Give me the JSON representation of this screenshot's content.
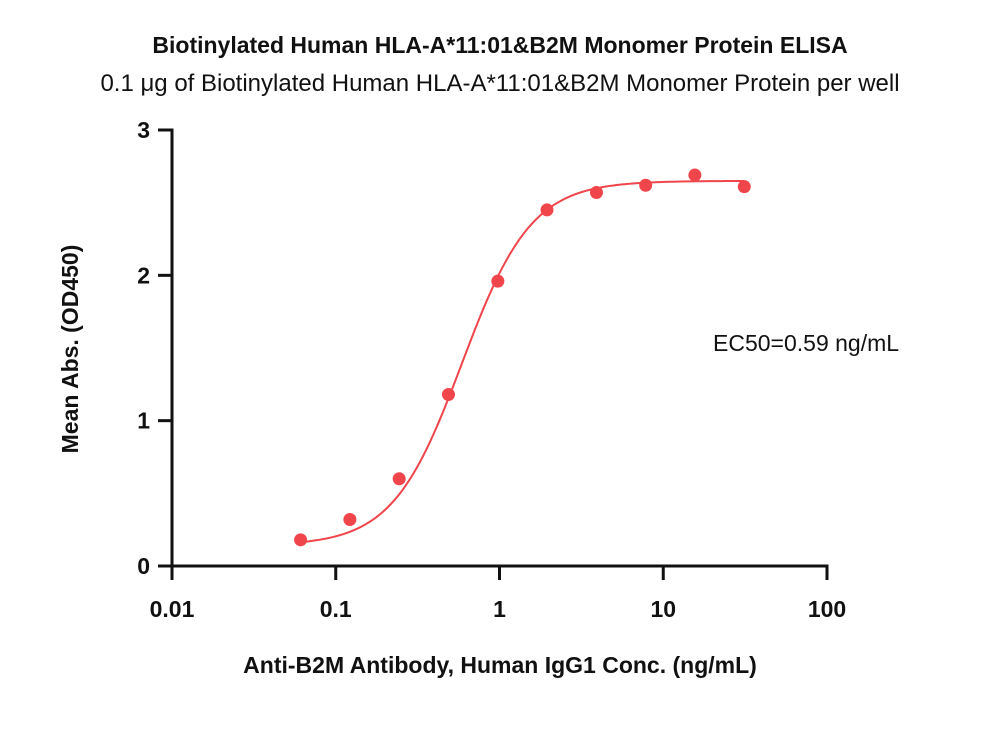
{
  "chart_data": {
    "type": "scatter",
    "title": "Biotinylated Human HLA-A*11:01&B2M Monomer Protein ELISA",
    "subtitle": "0.1 μg of Biotinylated Human HLA-A*11:01&B2M Monomer Protein per well",
    "xlabel": "Anti-B2M Antibody, Human IgG1  Conc. (ng/mL)",
    "ylabel": "Mean Abs. (OD450)",
    "x_scale": "log",
    "xlim": [
      0.01,
      100
    ],
    "ylim": [
      0,
      3
    ],
    "x_ticks": [
      "0.01",
      "0.1",
      "1",
      "10",
      "100"
    ],
    "y_ticks": [
      "0",
      "1",
      "2",
      "3"
    ],
    "grid": false,
    "series": [
      {
        "x": [
          0.061,
          0.122,
          0.244,
          0.488,
          0.977,
          1.95,
          3.91,
          7.81,
          15.6,
          31.25
        ],
        "y": [
          0.18,
          0.32,
          0.6,
          1.18,
          1.96,
          2.45,
          2.57,
          2.62,
          2.69,
          2.61
        ]
      }
    ],
    "fit": {
      "model": "4PL",
      "bottom": 0.14,
      "top": 2.65,
      "ec50": 0.59,
      "hill": 2.05
    },
    "annotations": [
      "EC50=0.59 ng/mL"
    ],
    "colors": {
      "series": "#f0454b",
      "axis": "#111111"
    }
  }
}
